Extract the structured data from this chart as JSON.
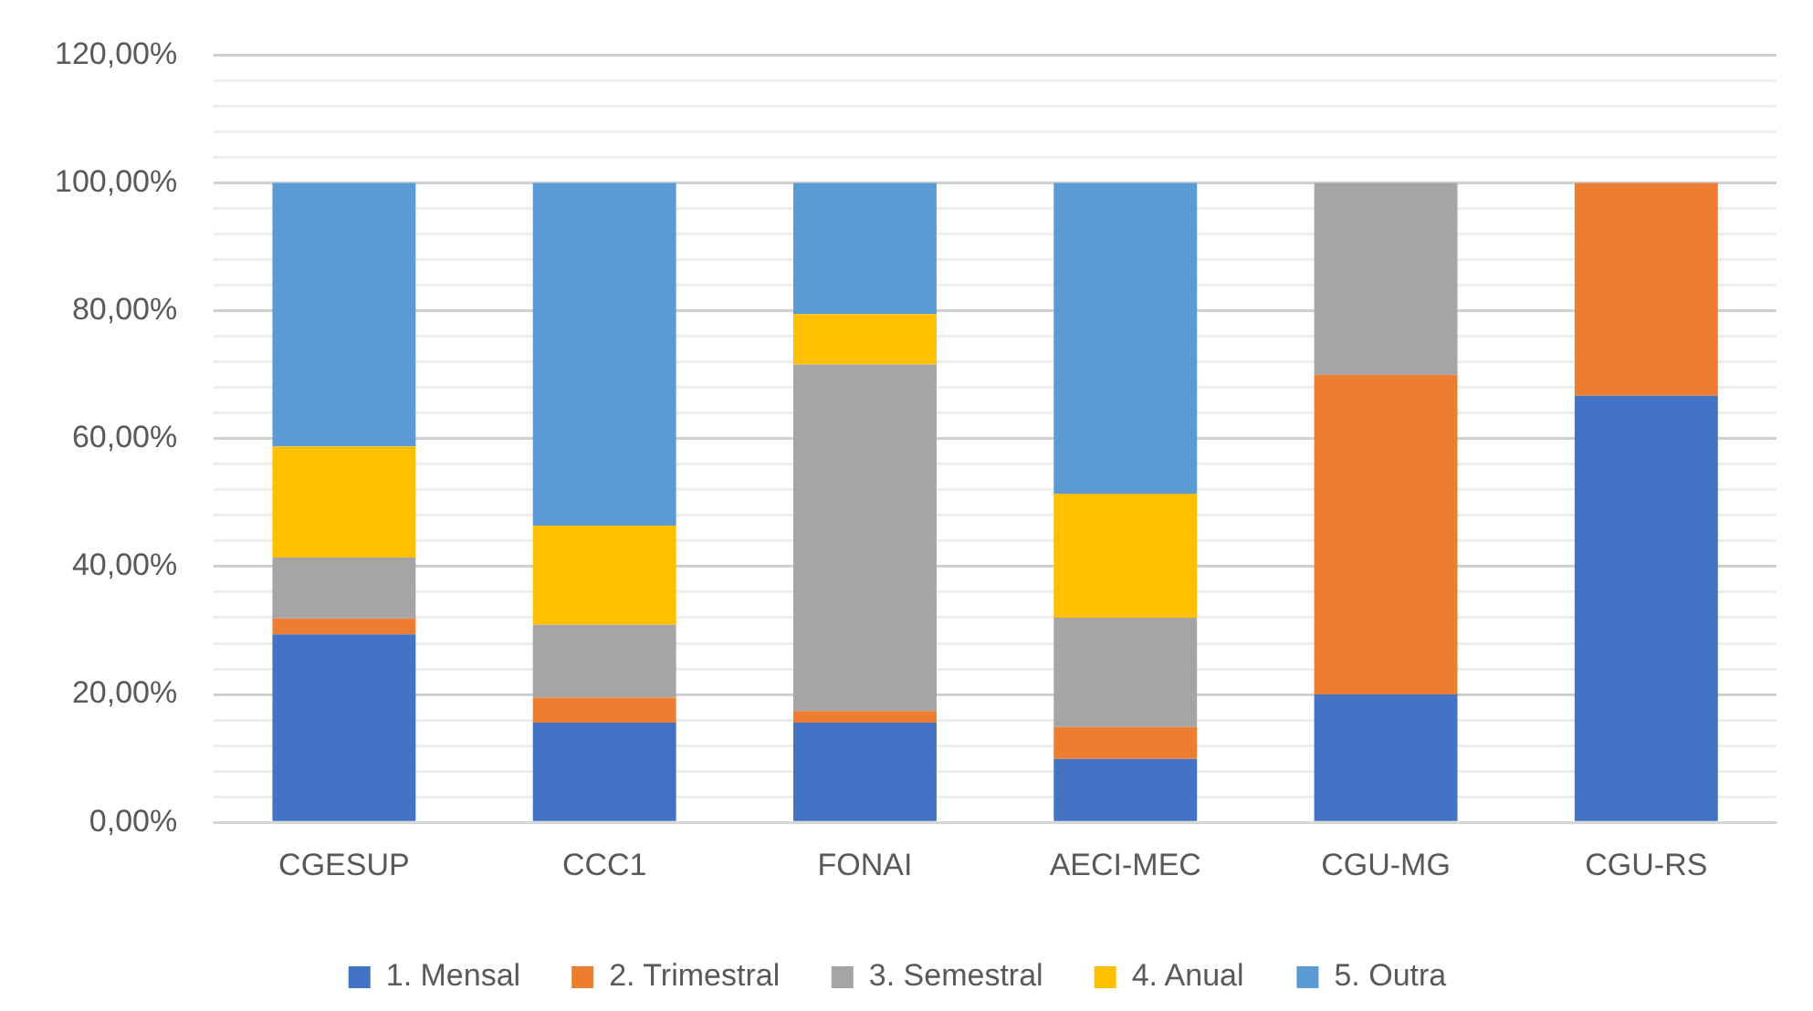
{
  "chart_data": {
    "type": "bar",
    "stacked": true,
    "categories": [
      "CGESUP",
      "CCC1",
      "FONAI",
      "AECI-MEC",
      "CGU-MG",
      "CGU-RS"
    ],
    "series": [
      {
        "name": "1. Mensal",
        "color": "#4472c4",
        "values": [
          29.4,
          15.6,
          15.6,
          9.9,
          20,
          66.7
        ]
      },
      {
        "name": "2. Trimestral",
        "color": "#ed7d31",
        "values": [
          2.5,
          3.9,
          1.8,
          5.0,
          50,
          33.3
        ]
      },
      {
        "name": "3. Semestral",
        "color": "#a5a5a5",
        "values": [
          9.5,
          11.4,
          54.2,
          17.1,
          30,
          0
        ]
      },
      {
        "name": "4. Anual",
        "color": "#ffc000",
        "values": [
          17.4,
          15.5,
          7.9,
          19.4,
          0,
          0
        ]
      },
      {
        "name": "5. Outra",
        "color": "#5b9bd5",
        "values": [
          41.2,
          53.6,
          20.5,
          48.6,
          0,
          0
        ]
      }
    ],
    "ylim": [
      0,
      120
    ],
    "yticks": [
      {
        "value": 0,
        "label": "0,00%"
      },
      {
        "value": 4,
        "label": null
      },
      {
        "value": 8,
        "label": null
      },
      {
        "value": 12,
        "label": null
      },
      {
        "value": 16,
        "label": null
      },
      {
        "value": 20,
        "label": "20,00%"
      },
      {
        "value": 24,
        "label": null
      },
      {
        "value": 28,
        "label": null
      },
      {
        "value": 32,
        "label": null
      },
      {
        "value": 36,
        "label": null
      },
      {
        "value": 40,
        "label": "40,00%"
      },
      {
        "value": 44,
        "label": null
      },
      {
        "value": 48,
        "label": null
      },
      {
        "value": 52,
        "label": null
      },
      {
        "value": 56,
        "label": null
      },
      {
        "value": 60,
        "label": "60,00%"
      },
      {
        "value": 64,
        "label": null
      },
      {
        "value": 68,
        "label": null
      },
      {
        "value": 72,
        "label": null
      },
      {
        "value": 76,
        "label": null
      },
      {
        "value": 80,
        "label": "80,00%"
      },
      {
        "value": 84,
        "label": null
      },
      {
        "value": 88,
        "label": null
      },
      {
        "value": 92,
        "label": null
      },
      {
        "value": 96,
        "label": null
      },
      {
        "value": 100,
        "label": "100,00%"
      },
      {
        "value": 104,
        "label": null
      },
      {
        "value": 108,
        "label": null
      },
      {
        "value": 112,
        "label": null
      },
      {
        "value": 116,
        "label": null
      },
      {
        "value": 120,
        "label": "120,00%"
      }
    ],
    "grid": "y",
    "legend": "bottom"
  }
}
